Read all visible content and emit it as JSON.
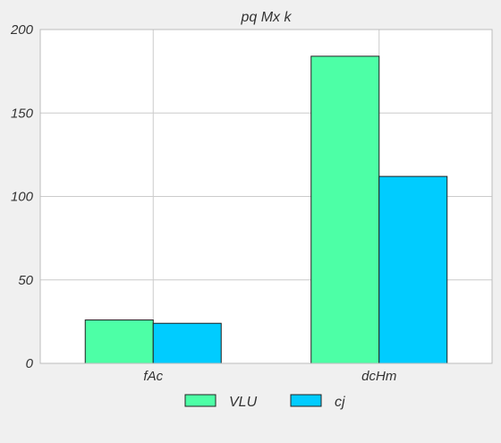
{
  "chart_data": {
    "type": "bar",
    "title": "pq Mx k",
    "xlabel": "",
    "ylabel": "",
    "categories": [
      "fAc",
      "dcHm"
    ],
    "series": [
      {
        "name": "VLU",
        "values": [
          26,
          184
        ],
        "color": "#4dffa6"
      },
      {
        "name": "cj",
        "values": [
          24,
          112
        ],
        "color": "#00ccff"
      }
    ],
    "ylim": [
      0,
      200
    ],
    "yticks": [
      0,
      50,
      100,
      150,
      200
    ],
    "grid": true,
    "legend_position": "bottom-center",
    "background": "#f0f0f0",
    "plot_background": "#ffffff"
  }
}
